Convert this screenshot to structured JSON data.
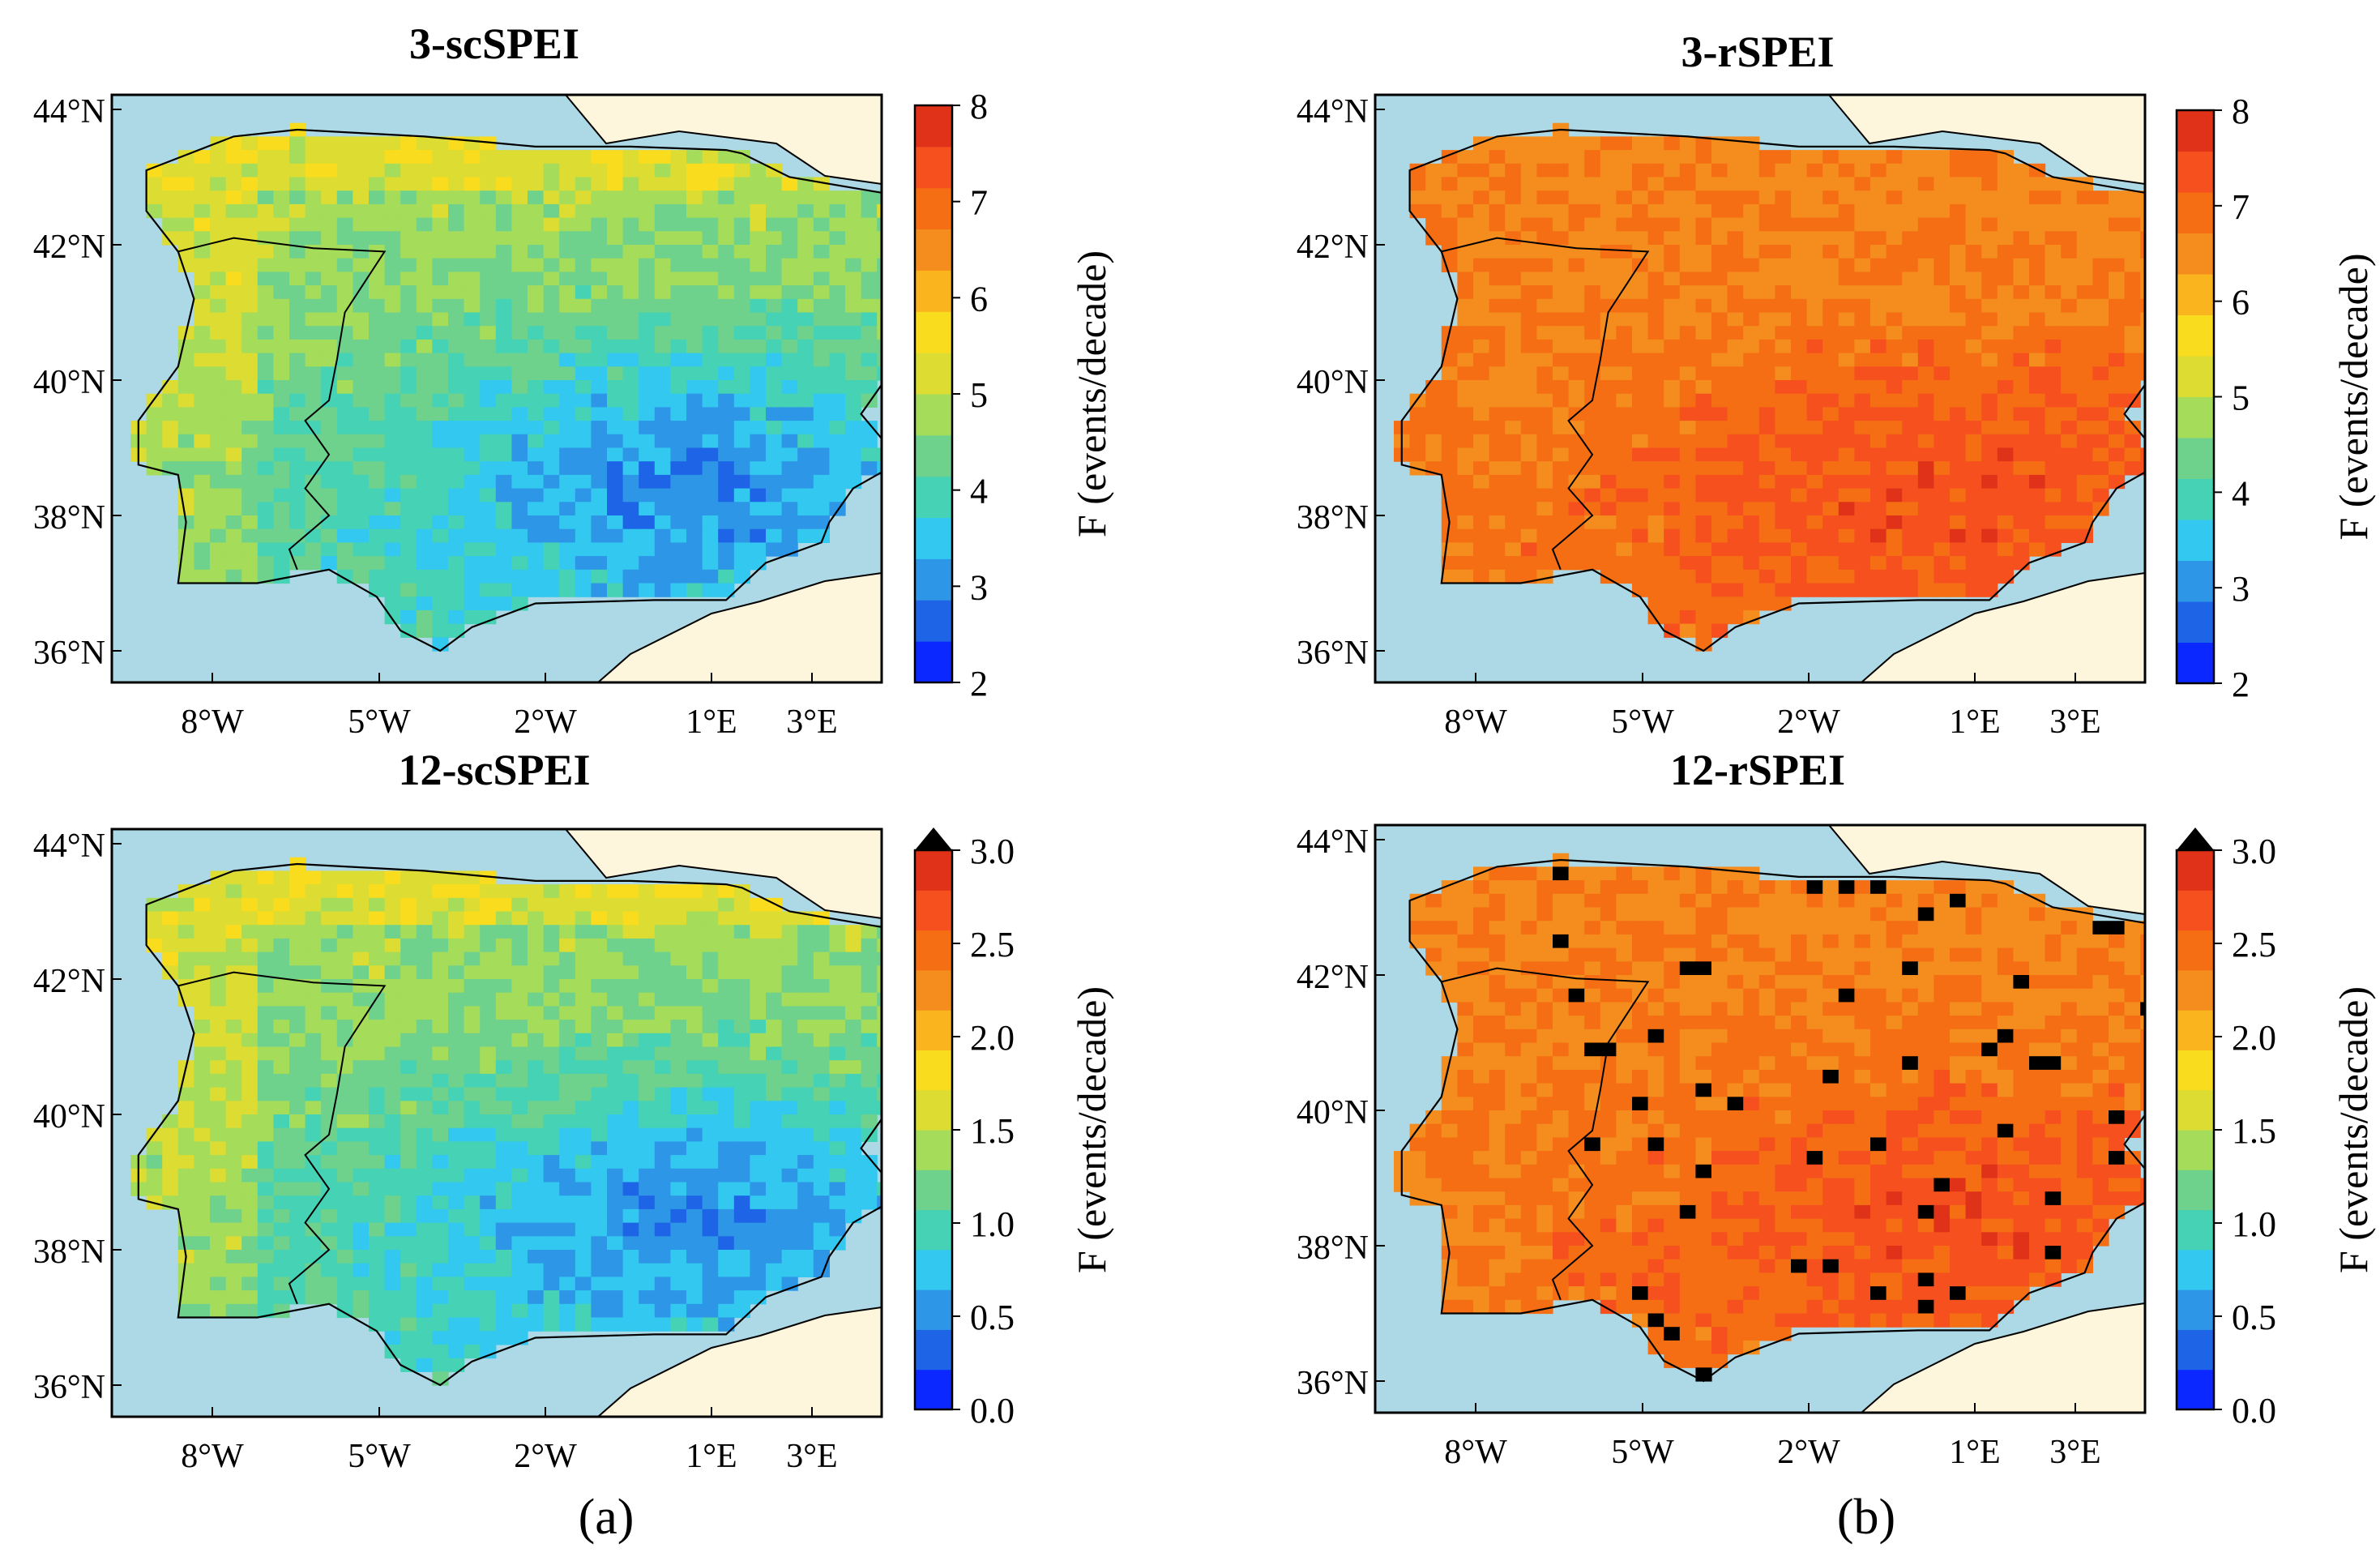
{
  "colors": {
    "sea": "#add8e6",
    "land_outside": "#fdf5dc",
    "border": "#000000",
    "scale_blue_to_red": [
      "#0a28ff",
      "#1e64e6",
      "#2d96e6",
      "#32c8f0",
      "#46d2b4",
      "#6ed28c",
      "#a5dc5a",
      "#dcdc32",
      "#fadc1e",
      "#fab41e",
      "#f58c1e",
      "#f56e14",
      "#f5501e",
      "#e03219"
    ]
  },
  "panels": [
    {
      "title": "3-scSPEI",
      "colorbar_label": "F (events/decade)",
      "colorbar_ticks": [
        "8",
        "7",
        "6",
        "5",
        "4",
        "3",
        "2"
      ],
      "colorbar_range": [
        2,
        8
      ],
      "colorbar_extend": "none",
      "field": "low"
    },
    {
      "title": "3-rSPEI",
      "colorbar_label": "F (events/decade)",
      "colorbar_ticks": [
        "8",
        "7",
        "6",
        "5",
        "4",
        "3",
        "2"
      ],
      "colorbar_range": [
        2,
        8
      ],
      "colorbar_extend": "none",
      "field": "high"
    },
    {
      "title": "12-scSPEI",
      "colorbar_label": "F (events/decade)",
      "colorbar_ticks": [
        "3.0",
        "2.5",
        "2.0",
        "1.5",
        "1.0",
        "0.5",
        "0.0"
      ],
      "colorbar_range": [
        0,
        3
      ],
      "colorbar_extend": "max",
      "field": "low"
    },
    {
      "title": "12-rSPEI",
      "colorbar_label": "F (events/decade)",
      "colorbar_ticks": [
        "3.0",
        "2.5",
        "2.0",
        "1.5",
        "1.0",
        "0.5",
        "0.0"
      ],
      "colorbar_range": [
        0,
        3
      ],
      "colorbar_extend": "max",
      "field": "high_extreme"
    }
  ],
  "lat_ticks": [
    "44°N",
    "42°N",
    "40°N",
    "38°N",
    "36°N"
  ],
  "lon_ticks": [
    "8°W",
    "5°W",
    "2°W",
    "1°E",
    "3°E"
  ],
  "subfigure_labels": [
    "(a)",
    "(b)"
  ]
}
